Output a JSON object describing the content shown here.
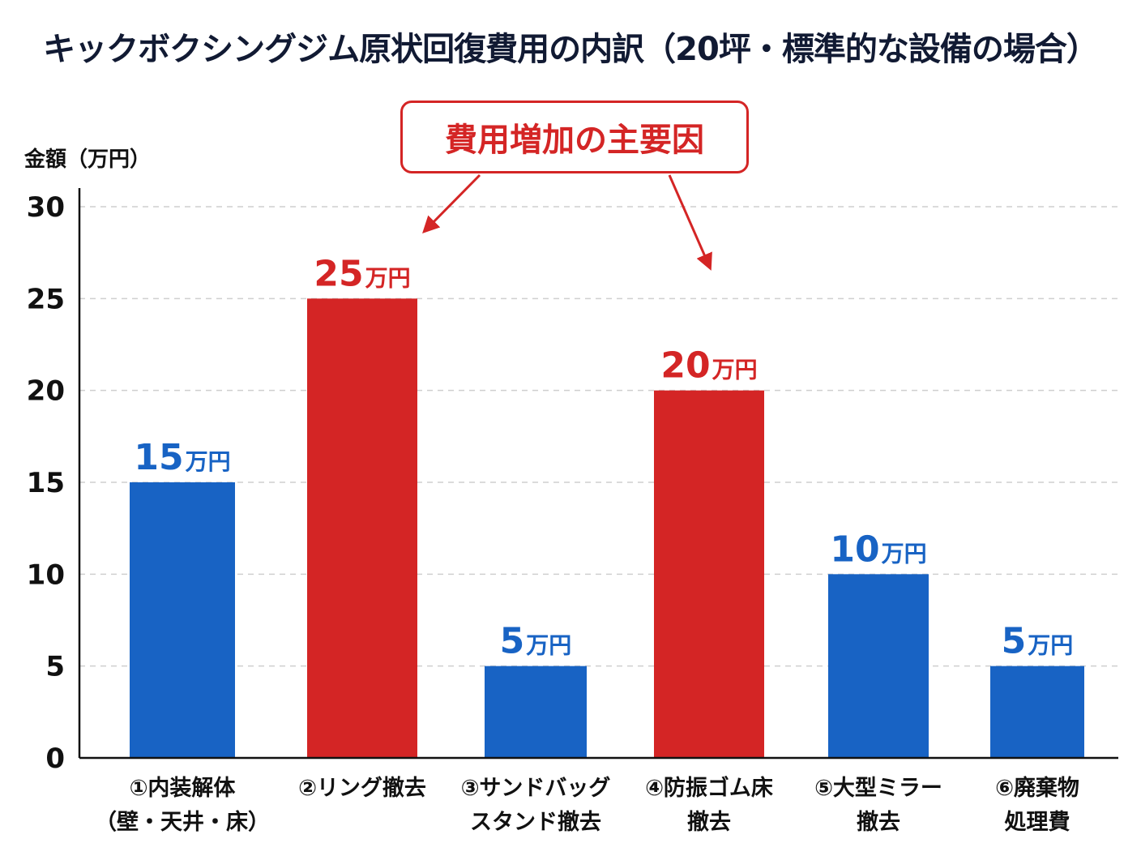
{
  "title": "キックボクシングジム原状回復費用の内訳（20坪・標準的な設備の場合）",
  "callout": "費用増加の主要因",
  "colors": {
    "normal": "#1863c4",
    "highlight": "#d42525"
  },
  "chart_data": {
    "type": "bar",
    "ylabel": "金額（万円）",
    "ylim": [
      0,
      30
    ],
    "yticks": [
      0,
      5,
      10,
      15,
      20,
      25,
      30
    ],
    "grid": true,
    "categories": [
      [
        "①内装解体",
        "（壁・天井・床）"
      ],
      [
        "②リング撤去"
      ],
      [
        "③サンドバッグ",
        "スタンド撤去"
      ],
      [
        "④防振ゴム床",
        "撤去"
      ],
      [
        "⑤大型ミラー",
        "撤去"
      ],
      [
        "⑥廃棄物",
        "処理費"
      ]
    ],
    "values": [
      15,
      25,
      5,
      20,
      10,
      5
    ],
    "value_unit": "万円",
    "highlighted": [
      false,
      true,
      false,
      true,
      false,
      false
    ]
  }
}
